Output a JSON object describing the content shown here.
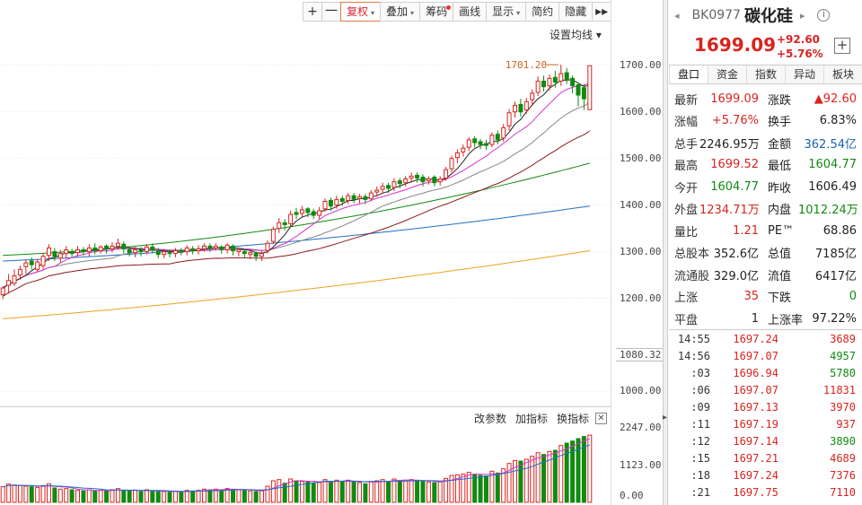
{
  "toolbar": {
    "zoom_in": "+",
    "zoom_out": "一",
    "items": [
      {
        "label": "复权",
        "dropdown": true,
        "active": true
      },
      {
        "label": "叠加",
        "dropdown": true
      },
      {
        "label": "筹码",
        "badge": true
      },
      {
        "label": "画线"
      },
      {
        "label": "显示",
        "dropdown": true
      },
      {
        "label": "简约"
      },
      {
        "label": "隐藏"
      }
    ],
    "more": "▸▸"
  },
  "ma_settings": "设置均线 ▾",
  "indicator_bar": {
    "params": "改参数",
    "add": "加指标",
    "switch": "换指标",
    "close": "✕"
  },
  "colors": {
    "up": "#d8241f",
    "down": "#118a11",
    "ma5": "#222222",
    "ma10": "#d632d0",
    "ma20": "#888888",
    "ma30": "#8b1a1a",
    "ma60": "#118a11",
    "ma120": "#1f6fc6",
    "ma250": "#f0a020"
  },
  "chart_data": {
    "type": "candlestick",
    "y_ticks": [
      "1700.00",
      "1600.00",
      "1500.00",
      "1400.00",
      "1300.00",
      "1200.00",
      "1000.00"
    ],
    "low_marker": "1080.32",
    "high_annotation": "1701.20",
    "vol_ticks": [
      "2247.00",
      "1123.00",
      "0.00"
    ],
    "ylim": [
      970,
      1740
    ],
    "vol_max": 2400,
    "bars": [
      [
        1208,
        1222,
        1198,
        1226,
        "u",
        520
      ],
      [
        1228,
        1238,
        1210,
        1252,
        "u",
        610
      ],
      [
        1232,
        1248,
        1226,
        1262,
        "u",
        580
      ],
      [
        1250,
        1262,
        1240,
        1270,
        "u",
        560
      ],
      [
        1268,
        1276,
        1252,
        1282,
        "u",
        540
      ],
      [
        1280,
        1272,
        1262,
        1288,
        "d",
        520
      ],
      [
        1262,
        1278,
        1256,
        1284,
        "u",
        500
      ],
      [
        1270,
        1290,
        1262,
        1296,
        "u",
        560
      ],
      [
        1292,
        1308,
        1280,
        1316,
        "u",
        620
      ],
      [
        1300,
        1290,
        1280,
        1308,
        "d",
        480
      ],
      [
        1286,
        1296,
        1276,
        1304,
        "u",
        440
      ],
      [
        1296,
        1304,
        1286,
        1312,
        "u",
        460
      ],
      [
        1300,
        1296,
        1288,
        1306,
        "d",
        420
      ],
      [
        1298,
        1304,
        1290,
        1312,
        "u",
        400
      ],
      [
        1304,
        1300,
        1292,
        1310,
        "d",
        380
      ],
      [
        1300,
        1308,
        1290,
        1316,
        "u",
        420
      ],
      [
        1308,
        1302,
        1294,
        1318,
        "d",
        380
      ],
      [
        1302,
        1310,
        1296,
        1314,
        "u",
        400
      ],
      [
        1312,
        1306,
        1296,
        1316,
        "d",
        380
      ],
      [
        1306,
        1312,
        1298,
        1320,
        "u",
        420
      ],
      [
        1312,
        1318,
        1304,
        1328,
        "u",
        460
      ],
      [
        1316,
        1306,
        1296,
        1322,
        "d",
        390
      ],
      [
        1304,
        1298,
        1290,
        1310,
        "d",
        380
      ],
      [
        1298,
        1304,
        1288,
        1310,
        "u",
        400
      ],
      [
        1304,
        1300,
        1290,
        1310,
        "d",
        360
      ],
      [
        1300,
        1310,
        1294,
        1316,
        "u",
        420
      ],
      [
        1310,
        1304,
        1296,
        1318,
        "d",
        380
      ],
      [
        1300,
        1294,
        1286,
        1308,
        "d",
        360
      ],
      [
        1294,
        1300,
        1286,
        1306,
        "u",
        360
      ],
      [
        1298,
        1296,
        1288,
        1304,
        "d",
        340
      ],
      [
        1296,
        1302,
        1288,
        1308,
        "u",
        360
      ],
      [
        1302,
        1300,
        1292,
        1308,
        "d",
        340
      ],
      [
        1300,
        1308,
        1292,
        1314,
        "u",
        400
      ],
      [
        1306,
        1302,
        1294,
        1312,
        "d",
        380
      ],
      [
        1302,
        1306,
        1294,
        1314,
        "u",
        400
      ],
      [
        1306,
        1312,
        1300,
        1318,
        "u",
        440
      ],
      [
        1312,
        1308,
        1300,
        1318,
        "d",
        420
      ],
      [
        1308,
        1312,
        1302,
        1318,
        "u",
        440
      ],
      [
        1310,
        1304,
        1296,
        1314,
        "d",
        420
      ],
      [
        1304,
        1314,
        1296,
        1318,
        "u",
        460
      ],
      [
        1312,
        1302,
        1292,
        1316,
        "d",
        440
      ],
      [
        1300,
        1304,
        1290,
        1308,
        "u",
        420
      ],
      [
        1300,
        1296,
        1286,
        1306,
        "d",
        400
      ],
      [
        1294,
        1298,
        1284,
        1302,
        "u",
        380
      ],
      [
        1296,
        1290,
        1280,
        1300,
        "d",
        360
      ],
      [
        1290,
        1296,
        1280,
        1302,
        "u",
        380
      ],
      [
        1302,
        1318,
        1296,
        1324,
        "u",
        540
      ],
      [
        1322,
        1348,
        1316,
        1354,
        "u",
        720
      ],
      [
        1350,
        1362,
        1340,
        1372,
        "u",
        760
      ],
      [
        1362,
        1358,
        1346,
        1370,
        "d",
        640
      ],
      [
        1360,
        1380,
        1352,
        1388,
        "u",
        780
      ],
      [
        1384,
        1380,
        1370,
        1394,
        "d",
        720
      ],
      [
        1382,
        1390,
        1374,
        1398,
        "u",
        700
      ],
      [
        1392,
        1384,
        1374,
        1396,
        "d",
        680
      ],
      [
        1386,
        1378,
        1370,
        1392,
        "d",
        640
      ],
      [
        1378,
        1388,
        1370,
        1396,
        "u",
        660
      ],
      [
        1392,
        1408,
        1386,
        1414,
        "u",
        760
      ],
      [
        1410,
        1398,
        1388,
        1416,
        "d",
        700
      ],
      [
        1400,
        1412,
        1392,
        1420,
        "u",
        740
      ],
      [
        1414,
        1408,
        1398,
        1420,
        "d",
        700
      ],
      [
        1410,
        1420,
        1402,
        1426,
        "u",
        740
      ],
      [
        1420,
        1412,
        1404,
        1426,
        "d",
        680
      ],
      [
        1414,
        1418,
        1404,
        1424,
        "u",
        660
      ],
      [
        1418,
        1412,
        1402,
        1424,
        "d",
        620
      ],
      [
        1414,
        1426,
        1408,
        1432,
        "u",
        700
      ],
      [
        1428,
        1432,
        1418,
        1440,
        "u",
        720
      ],
      [
        1434,
        1440,
        1424,
        1448,
        "u",
        760
      ],
      [
        1442,
        1436,
        1426,
        1448,
        "d",
        700
      ],
      [
        1438,
        1450,
        1430,
        1458,
        "u",
        780
      ],
      [
        1452,
        1446,
        1436,
        1458,
        "d",
        720
      ],
      [
        1448,
        1456,
        1440,
        1462,
        "u",
        740
      ],
      [
        1458,
        1462,
        1448,
        1470,
        "u",
        760
      ],
      [
        1464,
        1458,
        1448,
        1470,
        "d",
        720
      ],
      [
        1460,
        1450,
        1440,
        1466,
        "d",
        700
      ],
      [
        1452,
        1456,
        1444,
        1462,
        "u",
        680
      ],
      [
        1460,
        1448,
        1440,
        1464,
        "d",
        660
      ],
      [
        1450,
        1456,
        1442,
        1462,
        "u",
        680
      ],
      [
        1458,
        1476,
        1452,
        1482,
        "u",
        800
      ],
      [
        1478,
        1500,
        1470,
        1506,
        "u",
        900
      ],
      [
        1502,
        1512,
        1490,
        1520,
        "u",
        920
      ],
      [
        1514,
        1522,
        1504,
        1530,
        "u",
        940
      ],
      [
        1524,
        1540,
        1516,
        1546,
        "u",
        1000
      ],
      [
        1542,
        1534,
        1524,
        1548,
        "d",
        940
      ],
      [
        1536,
        1530,
        1520,
        1542,
        "d",
        900
      ],
      [
        1532,
        1528,
        1518,
        1540,
        "d",
        880
      ],
      [
        1530,
        1550,
        1524,
        1556,
        "u",
        1040
      ],
      [
        1552,
        1540,
        1530,
        1560,
        "d",
        980
      ],
      [
        1544,
        1566,
        1536,
        1574,
        "u",
        1120
      ],
      [
        1570,
        1598,
        1560,
        1606,
        "u",
        1300
      ],
      [
        1600,
        1614,
        1588,
        1622,
        "u",
        1400
      ],
      [
        1616,
        1600,
        1590,
        1628,
        "d",
        1380
      ],
      [
        1604,
        1622,
        1596,
        1630,
        "u",
        1440
      ],
      [
        1626,
        1640,
        1614,
        1648,
        "u",
        1540
      ],
      [
        1642,
        1666,
        1634,
        1676,
        "u",
        1660
      ],
      [
        1666,
        1654,
        1644,
        1678,
        "d",
        1600
      ],
      [
        1656,
        1672,
        1646,
        1680,
        "u",
        1700
      ],
      [
        1674,
        1664,
        1652,
        1688,
        "d",
        1740
      ],
      [
        1666,
        1682,
        1656,
        1701.2,
        "u",
        1900
      ],
      [
        1684,
        1670,
        1660,
        1694,
        "d",
        1980
      ],
      [
        1672,
        1656,
        1640,
        1678,
        "d",
        2050
      ],
      [
        1658,
        1636,
        1612,
        1664,
        "d",
        2130
      ],
      [
        1652,
        1628,
        1604,
        1660,
        "d",
        2200
      ],
      [
        1604.77,
        1699.09,
        1604.77,
        1699.52,
        "u",
        2247
      ]
    ]
  },
  "stock": {
    "code": "BK0977",
    "name": "碳化硅",
    "price": "1699.09",
    "change": "+92.60",
    "pct": "+5.76%",
    "prev": "◂",
    "next": "▸",
    "info": "i",
    "add": "+"
  },
  "tabs": [
    "盘口",
    "资金",
    "指数",
    "异动",
    "板块"
  ],
  "quote_rows": [
    {
      "k1": "最新",
      "v1": "1699.09",
      "c1": "red",
      "k2": "涨跌",
      "v2": "▲92.60",
      "c2": "red"
    },
    {
      "k1": "涨幅",
      "v1": "+5.76%",
      "c1": "red",
      "k2": "换手",
      "v2": "6.83%",
      "c2": "blk"
    },
    {
      "k1": "总手",
      "v1": "2246.95万",
      "c1": "blk",
      "k2": "金额",
      "v2": "362.54亿",
      "c2": "blue"
    },
    {
      "k1": "最高",
      "v1": "1699.52",
      "c1": "red",
      "k2": "最低",
      "v2": "1604.77",
      "c2": "green"
    },
    {
      "k1": "今开",
      "v1": "1604.77",
      "c1": "green",
      "k2": "昨收",
      "v2": "1606.49",
      "c2": "blk"
    },
    {
      "k1": "外盘",
      "v1": "1234.71万",
      "c1": "red",
      "k2": "内盘",
      "v2": "1012.24万",
      "c2": "green"
    },
    {
      "k1": "量比",
      "v1": "1.21",
      "c1": "red",
      "k2": "PE™",
      "v2": "68.86",
      "c2": "blk"
    },
    {
      "k1": "总股本",
      "v1": "352.6亿",
      "c1": "blk",
      "k2": "总值",
      "v2": "7185亿",
      "c2": "blk"
    },
    {
      "k1": "流通股",
      "v1": "329.0亿",
      "c1": "blk",
      "k2": "流值",
      "v2": "6417亿",
      "c2": "blk"
    },
    {
      "k1": "上涨",
      "v1": "35",
      "c1": "red",
      "k2": "下跌",
      "v2": "0",
      "c2": "green"
    },
    {
      "k1": "平盘",
      "v1": "1",
      "c1": "blk",
      "k2": "上涨率",
      "v2": "97.22%",
      "c2": "blk"
    }
  ],
  "ticks": [
    {
      "t": "14:55",
      "p": "1697.24",
      "v": "3689",
      "c": "red"
    },
    {
      "t": "14:56",
      "p": "1697.07",
      "v": "4957",
      "c": "green"
    },
    {
      "t": ":03",
      "p": "1696.94",
      "v": "5780",
      "c": "green"
    },
    {
      "t": ":06",
      "p": "1697.07",
      "v": "11831",
      "c": "red"
    },
    {
      "t": ":09",
      "p": "1697.13",
      "v": "3970",
      "c": "red"
    },
    {
      "t": ":11",
      "p": "1697.19",
      "v": "937",
      "c": "red"
    },
    {
      "t": ":12",
      "p": "1697.14",
      "v": "3890",
      "c": "green"
    },
    {
      "t": ":15",
      "p": "1697.21",
      "v": "4689",
      "c": "red"
    },
    {
      "t": ":18",
      "p": "1697.24",
      "v": "7376",
      "c": "red"
    },
    {
      "t": ":21",
      "p": "1697.75",
      "v": "7110",
      "c": "red"
    }
  ]
}
